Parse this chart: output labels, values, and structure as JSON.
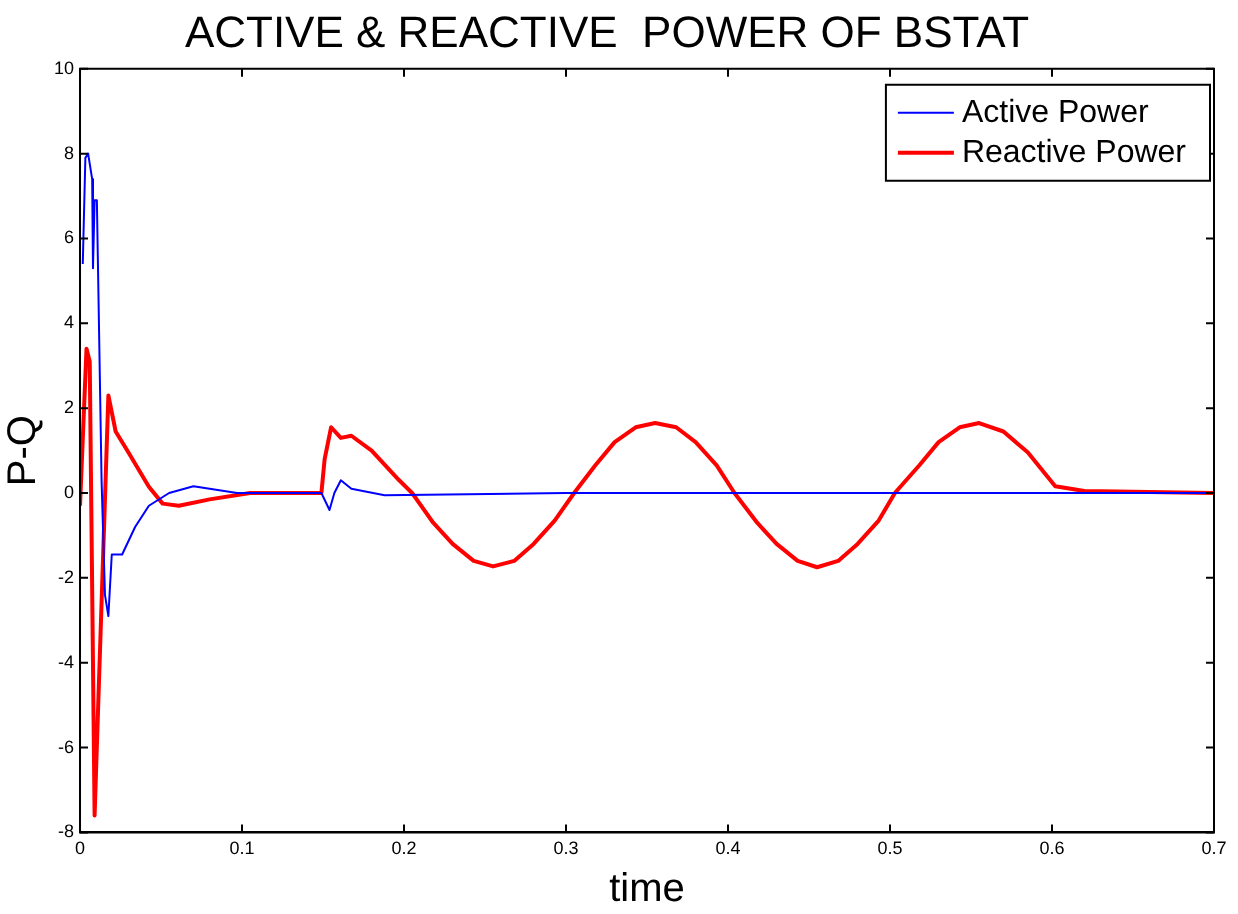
{
  "chart_data": {
    "type": "line",
    "title": "ACTIVE & REACTIVE  POWER OF BSTAT",
    "xlabel": "time",
    "ylabel": "P-Q",
    "xlim": [
      0,
      0.7
    ],
    "xticks": [
      0,
      0.1,
      0.2,
      0.3,
      0.4,
      0.5,
      0.6,
      0.7
    ],
    "ylim": [
      -8,
      10
    ],
    "yticks": [
      -8,
      -6,
      -4,
      -2,
      0,
      2,
      4,
      6,
      8,
      10
    ],
    "grid": false,
    "legend": "top right",
    "marker": "none",
    "line_style": "solid",
    "series": [
      {
        "name": "Active Power",
        "color": "#0000ff",
        "x": [
          0.0017,
          0.0033,
          0.005,
          0.0075,
          0.008,
          0.009,
          0.0104,
          0.0133,
          0.0154,
          0.0175,
          0.0196,
          0.026,
          0.034,
          0.0425,
          0.055,
          0.07,
          0.08,
          0.097,
          0.149,
          0.154,
          0.157,
          0.161,
          0.1675,
          0.188,
          0.3,
          0.4,
          0.5,
          0.6,
          0.7
        ],
        "values": [
          5.4,
          7.9,
          8.0,
          7.4,
          5.3,
          6.9,
          6.9,
          0.3,
          -2.4,
          -2.9,
          -1.45,
          -1.45,
          -0.8,
          -0.3,
          0,
          0.16,
          0.1,
          0,
          0,
          -0.4,
          0,
          0.3,
          0.1,
          -0.05,
          0,
          0,
          0,
          0,
          0
        ]
      },
      {
        "name": "Reactive Power",
        "color": "#ff0000",
        "x": [
          0,
          0.004,
          0.006,
          0.009,
          0.0175,
          0.022,
          0.03,
          0.0425,
          0.051,
          0.061,
          0.08,
          0.105,
          0.149,
          0.151,
          0.155,
          0.161,
          0.1675,
          0.18,
          0.197,
          0.205,
          0.218,
          0.23,
          0.243,
          0.255,
          0.268,
          0.28,
          0.293,
          0.305,
          0.318,
          0.33,
          0.343,
          0.355,
          0.368,
          0.38,
          0.393,
          0.404,
          0.418,
          0.43,
          0.443,
          0.455,
          0.468,
          0.48,
          0.493,
          0.503,
          0.518,
          0.53,
          0.543,
          0.555,
          0.57,
          0.585,
          0.602,
          0.62,
          0.7
        ],
        "values": [
          -0.3,
          3.4,
          3.1,
          -7.6,
          2.3,
          1.45,
          0.95,
          0.15,
          -0.25,
          -0.3,
          -0.15,
          0,
          0,
          0.8,
          1.55,
          1.3,
          1.35,
          1.0,
          0.3,
          0,
          -0.7,
          -1.2,
          -1.6,
          -1.73,
          -1.6,
          -1.2,
          -0.65,
          0,
          0.65,
          1.2,
          1.55,
          1.65,
          1.55,
          1.2,
          0.65,
          0,
          -0.7,
          -1.2,
          -1.6,
          -1.75,
          -1.6,
          -1.2,
          -0.65,
          0,
          0.65,
          1.2,
          1.55,
          1.65,
          1.45,
          0.96,
          0.16,
          0.05,
          0
        ]
      }
    ]
  }
}
